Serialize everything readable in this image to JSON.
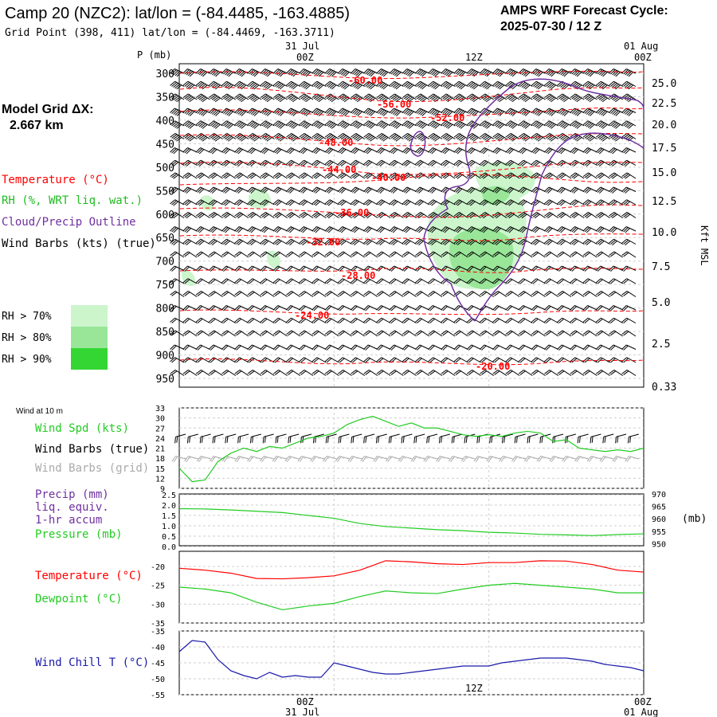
{
  "header": {
    "title": "Camp 20 (NZC2):  lat/lon = (-84.4485, -163.4885)",
    "subtitle": "Grid Point (398, 411) lat/lon = (-84.4469, -163.3711)",
    "cycle_line1": "AMPS WRF Forecast Cycle:",
    "cycle_line2": "2025-07-30 / 12  Z"
  },
  "left_panel": {
    "model_grid_line1": "Model Grid ΔX:",
    "model_grid_line2": "2.667 km",
    "legend_temperature": "Temperature (°C)",
    "legend_rh": "RH (%, WRT liq. wat.)",
    "legend_cloud": "Cloud/Precip Outline",
    "legend_wind": "Wind Barbs (kts) (true)",
    "rh70": "RH > 70%",
    "rh80": "RH > 80%",
    "rh90": "RH > 90%"
  },
  "colors": {
    "temperature": "#ff0000",
    "rh70": "#ccf5cc",
    "rh80": "#99e699",
    "rh90": "#33d633",
    "cloud": "#7030a0",
    "wind_spd": "#22cc22",
    "pressure": "#22cc22",
    "dewpoint": "#22cc22",
    "windchill": "#1a1aaa",
    "barbs_grid": "#aaaaaa"
  },
  "time_axis": {
    "top_date": "31 Jul",
    "top_date_right": "01 Aug",
    "ticks": [
      "00Z",
      "12Z",
      "00Z"
    ],
    "bottom_date": "31 Jul",
    "bottom_date_right": "01 Aug"
  },
  "chart_data": [
    {
      "type": "line",
      "panel": "vertical cross-section",
      "y_axis_label": "P (mb)",
      "y_ticks": [
        "300",
        "350",
        "400",
        "450",
        "500",
        "550",
        "600",
        "650",
        "700",
        "750",
        "800",
        "850",
        "900",
        "950"
      ],
      "right_axis_label": "Kft MSL",
      "right_ticks": [
        "25.0",
        "22.5",
        "20.0",
        "17.5",
        "15.0",
        "12.5",
        "10.0",
        "7.5",
        "5.0",
        "2.5",
        "0.33"
      ],
      "temperature_labels": [
        "-60.00",
        "-56.00",
        "-52.00",
        "-48.00",
        "-44.00",
        "-40.00",
        "-36.00",
        "-32.00",
        "-28.00",
        "-24.00",
        "-20.00"
      ]
    },
    {
      "type": "line",
      "panel": "Wind at 10 m",
      "label": "Wind at 10 m",
      "legend": [
        "Wind Spd (kts)",
        "Wind Barbs (true)",
        "Wind Barbs (grid)"
      ],
      "y_ticks": [
        "33",
        "30",
        "27",
        "24",
        "21",
        "18",
        "15",
        "12",
        "9"
      ],
      "ylim": [
        9,
        33
      ],
      "x_hours": [
        0,
        1,
        2,
        3,
        4,
        5,
        6,
        7,
        8,
        9,
        10,
        11,
        12,
        13,
        14,
        15,
        16,
        17,
        18,
        19,
        20,
        21,
        22,
        23,
        24,
        25,
        26,
        27,
        28,
        29,
        30,
        31,
        32,
        33,
        34,
        35,
        36
      ],
      "series": [
        {
          "name": "Wind Spd (kts)",
          "values": [
            15,
            11,
            11.5,
            17,
            19.5,
            21,
            20,
            21.5,
            21,
            22.5,
            24,
            24.5,
            25.5,
            28,
            29.5,
            30.5,
            29,
            27.5,
            28.5,
            27,
            27,
            26,
            25,
            24.5,
            25,
            24.5,
            25.5,
            26,
            25.5,
            23,
            23.5,
            21,
            20.5,
            20,
            20.5,
            20,
            21
          ]
        }
      ]
    },
    {
      "type": "line",
      "panel": "Precip / Pressure",
      "legend": [
        "Precip (mm)",
        "liq. equiv.",
        "1-hr accum",
        "Pressure (mb)"
      ],
      "y_ticks_left": [
        "2.5",
        "2.0",
        "1.5",
        "1.0",
        "0.5",
        "0.0"
      ],
      "y_ticks_right": [
        "970",
        "965",
        "960",
        "955",
        "950"
      ],
      "right_unit": "(mb)",
      "ylim_right": [
        950,
        970
      ],
      "x_hours": [
        0,
        2,
        4,
        6,
        8,
        10,
        12,
        14,
        16,
        18,
        20,
        22,
        24,
        26,
        28,
        30,
        32,
        34,
        36
      ],
      "series": [
        {
          "name": "Pressure (mb)",
          "values": [
            964.3,
            964.2,
            963.8,
            963.3,
            962.8,
            961.7,
            960.6,
            958.6,
            957.4,
            956.8,
            956.2,
            955.8,
            955.2,
            954.9,
            954.4,
            954.2,
            953.9,
            954.3,
            954.6
          ]
        }
      ]
    },
    {
      "type": "line",
      "panel": "Temperature / Dewpoint",
      "legend": [
        "Temperature (°C)",
        "Dewpoint (°C)"
      ],
      "y_ticks": [
        "-20",
        "-25",
        "-30",
        "-35"
      ],
      "ylim": [
        -35,
        -16
      ],
      "x_hours": [
        0,
        2,
        4,
        6,
        8,
        10,
        12,
        14,
        16,
        18,
        20,
        22,
        24,
        26,
        28,
        30,
        32,
        34,
        36
      ],
      "series": [
        {
          "name": "Temperature (°C)",
          "values": [
            -20.5,
            -21,
            -21.8,
            -23.2,
            -23.3,
            -23,
            -22.5,
            -21,
            -18.5,
            -18.8,
            -19.3,
            -19.5,
            -19,
            -19,
            -18.5,
            -18.6,
            -19.5,
            -21,
            -21.5
          ]
        },
        {
          "name": "Dewpoint (°C)",
          "values": [
            -25.5,
            -26,
            -27,
            -29.5,
            -31.5,
            -30.5,
            -29.8,
            -28,
            -26.5,
            -27,
            -27.2,
            -26,
            -25,
            -24.5,
            -25,
            -25.5,
            -26,
            -27,
            -27
          ]
        }
      ]
    },
    {
      "type": "line",
      "panel": "Wind Chill",
      "legend": [
        "Wind Chill T (°C)"
      ],
      "y_ticks": [
        "-35",
        "-40",
        "-45",
        "-50",
        "-55"
      ],
      "ylim": [
        -55,
        -35
      ],
      "x_hours": [
        0,
        1,
        2,
        3,
        4,
        5,
        6,
        7,
        8,
        9,
        10,
        11,
        12,
        13,
        14,
        15,
        16,
        17,
        18,
        19,
        20,
        21,
        22,
        23,
        24,
        25,
        26,
        27,
        28,
        29,
        30,
        31,
        32,
        33,
        34,
        35,
        36
      ],
      "series": [
        {
          "name": "Wind Chill T (°C)",
          "values": [
            -41.5,
            -38,
            -38.5,
            -44,
            -47.5,
            -49,
            -50,
            -48,
            -49.5,
            -49,
            -49.5,
            -49.5,
            -45,
            -46,
            -47,
            -48,
            -48.5,
            -48.5,
            -48,
            -47.5,
            -47,
            -46.5,
            -46,
            -46,
            -46,
            -45,
            -44.5,
            -44,
            -43.5,
            -43.5,
            -43.5,
            -44,
            -44.5,
            -45.5,
            -46,
            -46.5,
            -47.5
          ]
        }
      ]
    }
  ],
  "panel_labels": {
    "wind_spd": "Wind Spd (kts)",
    "wind_barbs_true": "Wind Barbs (true)",
    "wind_barbs_grid": "Wind Barbs (grid)",
    "precip1": "Precip (mm)",
    "precip2": "liq. equiv.",
    "precip3": "1-hr accum",
    "pressure": "Pressure (mb)",
    "temperature": "Temperature (°C)",
    "dewpoint": "Dewpoint (°C)",
    "windchill": "Wind Chill T (°C)"
  }
}
